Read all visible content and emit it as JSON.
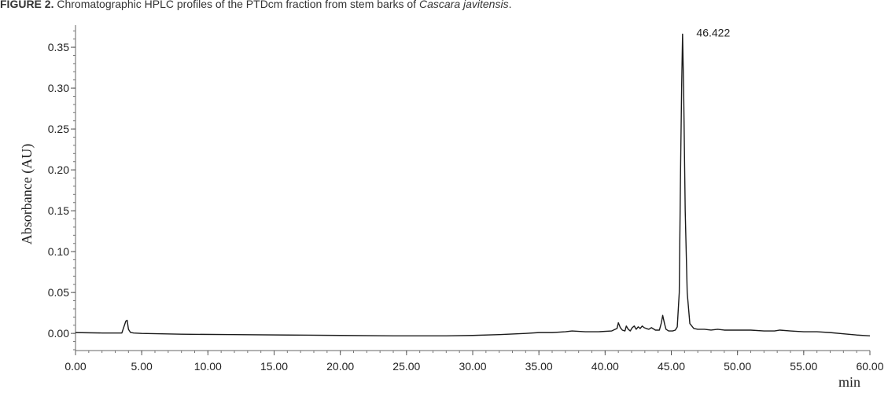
{
  "caption": {
    "lead": "FIGURE 2.",
    "text": " Chromatographic HPLC profiles of the PTDcm fraction from stem barks of ",
    "species": "Cascara javitensis",
    "end": "."
  },
  "chart_data": {
    "type": "line",
    "xlabel": "min",
    "ylabel": "Absorbance (AU)",
    "xlim": [
      0,
      60
    ],
    "ylim": [
      -0.021,
      0.377
    ],
    "x_ticks": [
      0,
      5,
      10,
      15,
      20,
      25,
      30,
      35,
      40,
      45,
      50,
      55,
      60
    ],
    "x_tick_labels": [
      "0.00",
      "5.00",
      "10.00",
      "15.00",
      "20.00",
      "25.00",
      "30.00",
      "35.00",
      "40.00",
      "45.00",
      "50.00",
      "55.00",
      "60.00"
    ],
    "y_ticks": [
      0,
      0.05,
      0.1,
      0.15,
      0.2,
      0.25,
      0.3,
      0.35
    ],
    "y_tick_labels": [
      "0.00",
      "0.05",
      "0.10",
      "0.15",
      "0.20",
      "0.25",
      "0.30",
      "0.35"
    ],
    "x_minor_step": 1,
    "y_minor_step": 0.01,
    "grid": false,
    "line_color": "#1a1a1a",
    "series": [
      {
        "x": [
          0,
          2,
          3.5,
          3.8,
          3.9,
          4.0,
          4.15,
          4.4,
          5,
          8,
          12,
          16,
          20,
          24,
          28,
          30,
          32,
          34,
          35,
          36,
          37,
          37.5,
          38.5,
          39.5,
          40.5,
          40.9,
          41.0,
          41.15,
          41.3,
          41.5,
          41.6,
          41.75,
          41.9,
          42.05,
          42.2,
          42.35,
          42.5,
          42.65,
          42.8,
          42.95,
          43.1,
          43.3,
          43.5,
          43.8,
          44.1,
          44.25,
          44.35,
          44.5,
          44.6,
          44.8,
          45.1,
          45.3,
          45.45,
          45.6,
          45.7,
          45.78,
          45.85,
          45.93,
          46.05,
          46.2,
          46.4,
          46.7,
          47.0,
          47.5,
          48,
          48.5,
          49,
          50,
          51,
          52,
          52.8,
          53.2,
          54,
          55,
          56,
          57,
          58,
          59,
          60
        ],
        "y": [
          0.001,
          0.0005,
          0.0005,
          0.015,
          0.016,
          0.005,
          0.0012,
          0.0005,
          0,
          -0.001,
          -0.0015,
          -0.002,
          -0.0025,
          -0.003,
          -0.003,
          -0.0025,
          -0.0015,
          0,
          0.001,
          0.001,
          0.002,
          0.003,
          0.002,
          0.002,
          0.003,
          0.006,
          0.013,
          0.007,
          0.004,
          0.003,
          0.009,
          0.005,
          0.003,
          0.007,
          0.009,
          0.005,
          0.008,
          0.006,
          0.009,
          0.007,
          0.006,
          0.005,
          0.007,
          0.004,
          0.004,
          0.013,
          0.022,
          0.011,
          0.005,
          0.003,
          0.003,
          0.004,
          0.008,
          0.05,
          0.2,
          0.3,
          0.366,
          0.3,
          0.15,
          0.05,
          0.012,
          0.006,
          0.005,
          0.005,
          0.004,
          0.005,
          0.004,
          0.004,
          0.004,
          0.003,
          0.003,
          0.004,
          0.003,
          0.002,
          0.002,
          0.001,
          -0.0005,
          -0.002,
          -0.003
        ]
      }
    ],
    "annotations": [
      {
        "x": 46.422,
        "y": 0.366,
        "text": "46.422"
      }
    ]
  }
}
